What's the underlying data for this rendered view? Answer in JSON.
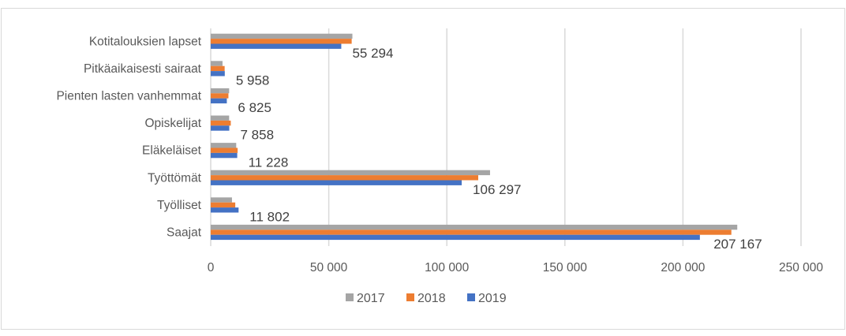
{
  "chart_data": {
    "type": "bar",
    "orientation": "horizontal",
    "title": "",
    "xlabel": "",
    "ylabel": "",
    "xlim": [
      0,
      250000
    ],
    "x_ticks": [
      0,
      50000,
      100000,
      150000,
      200000,
      250000
    ],
    "x_tick_labels": [
      "0",
      "50 000",
      "100 000",
      "150 000",
      "200 000",
      "250 000"
    ],
    "grid": "vertical",
    "legend_position": "bottom",
    "categories": [
      "Kotitalouksien lapset",
      "Pitkäaikaisesti sairaat",
      "Pienten lasten vanhemmat",
      "Opiskelijat",
      "Eläkeläiset",
      "Työttömät",
      "Työlliset",
      "Saajat"
    ],
    "series": [
      {
        "name": "2017",
        "color": "#A5A5A5",
        "values": [
          60000,
          5000,
          7800,
          7800,
          10800,
          118300,
          9000,
          223000
        ]
      },
      {
        "name": "2018",
        "color": "#ED7D31",
        "values": [
          59700,
          5900,
          7500,
          8500,
          11400,
          113300,
          10400,
          220500
        ]
      },
      {
        "name": "2019",
        "color": "#4472C4",
        "values": [
          55294,
          5958,
          6825,
          7858,
          11228,
          106297,
          11802,
          207167
        ]
      }
    ],
    "data_labels": {
      "series": "2019",
      "labels": [
        "55 294",
        "5 958",
        "6 825",
        "7 858",
        "11 228",
        "106 297",
        "11 802",
        "207 167"
      ]
    }
  }
}
